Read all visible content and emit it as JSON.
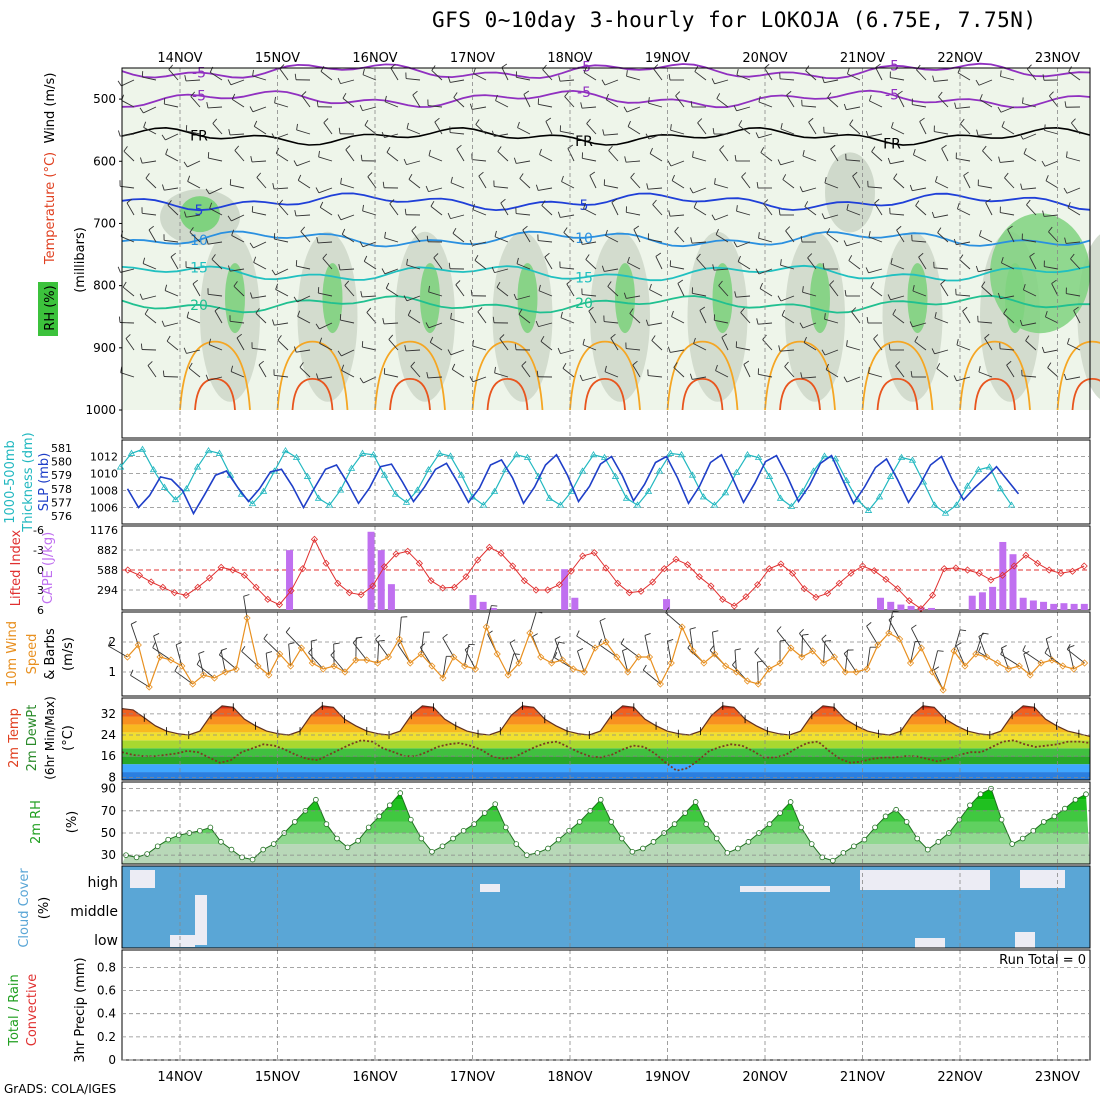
{
  "title": "GFS 0~10day 3-hourly for LOKOJA (6.75E, 7.75N)",
  "footer": "GrADS: COLA/IGES",
  "run_total": "Run Total = 0",
  "days": [
    "14NOV",
    "15NOV",
    "16NOV",
    "17NOV",
    "18NOV",
    "19NOV",
    "20NOV",
    "21NOV",
    "22NOV",
    "23NOV"
  ],
  "colors": {
    "temp_warm": "#e8551e",
    "temp_orange": "#f5a623",
    "green": "#22c422",
    "sky": "#5aa6d6",
    "slp": "#1f3fc8",
    "thick": "#22b8c0",
    "li": "#e03030",
    "cape": "#c070f0",
    "wind10": "#e89020"
  },
  "chart_data": [
    {
      "type": "heatmap",
      "name": "upper",
      "ylabel_parts": [
        "Wind (m/s)",
        "Temperature (°C)",
        "RH (%)"
      ],
      "ylabel_units": "(millibars)",
      "yticks": [
        500,
        600,
        700,
        800,
        900,
        1000
      ],
      "ylim": [
        1000,
        450
      ],
      "isotherm_labels": [
        "-5",
        "FR",
        "5",
        "10",
        "15",
        "20"
      ],
      "rh_labels": [
        "10",
        "30",
        "50",
        "70"
      ]
    },
    {
      "type": "line",
      "name": "thickness_slp",
      "ylabel": [
        "1000-500mb",
        "Thickness (dm)",
        "SLP (mb)"
      ],
      "left_ticks": [
        576,
        577,
        578,
        579,
        580,
        581
      ],
      "right_ticks": [
        1006,
        1008,
        1010,
        1012
      ],
      "thickness": [
        579.6,
        580.6,
        580.9,
        579.4,
        578.1,
        577.2,
        578.0,
        579.6,
        580.8,
        580.6,
        579.0,
        577.6,
        576.9,
        577.8,
        579.3,
        580.8,
        580.3,
        578.9,
        577.3,
        576.8,
        577.9,
        579.5,
        580.6,
        580.5,
        579.0,
        577.6,
        577.0,
        577.9,
        579.4,
        580.6,
        580.4,
        579.0,
        577.4,
        576.8,
        577.8,
        579.4,
        580.5,
        580.3,
        578.9,
        577.3,
        576.8,
        577.8,
        579.3,
        580.5,
        580.3,
        578.9,
        577.3,
        576.8,
        577.8,
        579.3,
        580.6,
        580.5,
        579.0,
        577.4,
        576.8,
        577.7,
        579.2,
        580.5,
        580.3,
        578.9,
        577.3,
        576.7,
        577.8,
        579.3,
        580.4,
        580.2,
        578.6,
        577.2,
        576.4,
        577.4,
        578.9,
        580.3,
        580.1,
        578.5,
        576.8,
        576.2,
        576.8,
        578.2,
        579.4,
        579.6,
        578.0,
        576.8
      ],
      "slp": [
        1008.2,
        1006.0,
        1007.4,
        1009.6,
        1009.3,
        1008.0,
        1005.3,
        1007.5,
        1009.8,
        1010.3,
        1008.4,
        1006.7,
        1008.2,
        1010.2,
        1010.5,
        1008.5,
        1006.0,
        1008.3,
        1010.5,
        1011.0,
        1008.9,
        1006.5,
        1008.3,
        1010.8,
        1011.1,
        1009.0,
        1006.7,
        1008.4,
        1010.5,
        1011.2,
        1009.0,
        1006.6,
        1008.3,
        1011.0,
        1011.6,
        1009.5,
        1006.5,
        1008.4,
        1011.0,
        1012.2,
        1009.8,
        1006.7,
        1008.5,
        1011.1,
        1012.0,
        1009.7,
        1006.8,
        1008.7,
        1011.3,
        1012.0,
        1009.5,
        1006.5,
        1008.5,
        1011.3,
        1012.2,
        1009.5,
        1006.6,
        1008.8,
        1011.4,
        1012.1,
        1009.6,
        1006.7,
        1008.6,
        1011.2,
        1012.1,
        1009.3,
        1006.5,
        1008.4,
        1010.7,
        1011.7,
        1009.3,
        1006.6,
        1008.6,
        1011.0,
        1012.0,
        1009.2,
        1006.9,
        1008.3,
        1009.5,
        1010.8,
        1009.2,
        1007.6
      ]
    },
    {
      "type": "bar",
      "name": "li_cape",
      "ylabel": [
        "Lifted Index",
        "CAPE (J/kg)"
      ],
      "left_ticks": [
        -6,
        -3,
        0,
        3,
        6
      ],
      "right_ticks": [
        294,
        588,
        882,
        1176
      ],
      "lifted_index": [
        0.0,
        0.8,
        1.8,
        2.6,
        3.4,
        3.8,
        2.6,
        1.2,
        -0.4,
        0.0,
        0.8,
        2.6,
        4.4,
        5.2,
        3.1,
        -0.2,
        -4.6,
        -1.0,
        2.0,
        3.4,
        3.7,
        2.4,
        -0.5,
        -2.4,
        -2.8,
        -1.0,
        1.6,
        2.7,
        2.6,
        1.0,
        -1.5,
        -3.4,
        -2.5,
        -0.6,
        1.6,
        3.0,
        3.0,
        2.2,
        0.2,
        -2.1,
        -2.6,
        -0.3,
        2.0,
        3.4,
        3.2,
        1.8,
        -0.2,
        -1.6,
        -0.8,
        1.0,
        2.4,
        4.4,
        5.4,
        4.0,
        2.2,
        -0.2,
        -0.9,
        0.5,
        2.8,
        4.1,
        3.5,
        2.0,
        0.5,
        -0.6,
        0.1,
        1.4,
        2.8,
        4.6,
        5.8,
        3.8,
        -0.2,
        -0.3,
        0.0,
        0.5,
        1.5,
        0.8,
        -0.6,
        -2.2,
        -1.0,
        0.0,
        0.5,
        0.2,
        -0.6
      ],
      "cape": [
        0,
        0,
        0,
        0,
        0,
        0,
        0,
        0,
        0,
        0,
        0,
        0,
        0,
        0,
        0,
        0,
        880,
        0,
        0,
        0,
        0,
        0,
        0,
        0,
        1150,
        880,
        380,
        0,
        0,
        0,
        0,
        0,
        0,
        0,
        220,
        120,
        30,
        0,
        0,
        0,
        0,
        0,
        0,
        600,
        180,
        0,
        0,
        0,
        0,
        0,
        0,
        0,
        0,
        160,
        0,
        0,
        0,
        0,
        0,
        0,
        0,
        0,
        0,
        0,
        0,
        0,
        0,
        0,
        0,
        0,
        0,
        0,
        0,
        0,
        180,
        120,
        80,
        60,
        40,
        30,
        0,
        0,
        0,
        210,
        260,
        340,
        1000,
        820,
        180,
        140,
        120,
        90,
        100,
        90,
        90
      ]
    },
    {
      "type": "line",
      "name": "wind10",
      "ylabel": [
        "10m Wind",
        "Speed",
        "& Barbs",
        "(m/s)"
      ],
      "yticks": [
        1,
        2
      ],
      "ylim": [
        0.2,
        3.0
      ],
      "values": [
        1.5,
        1.9,
        0.5,
        1.5,
        1.4,
        1.2,
        0.6,
        0.9,
        0.8,
        1.0,
        1.1,
        2.8,
        1.2,
        0.9,
        1.6,
        1.2,
        1.8,
        1.3,
        1.1,
        1.2,
        1.0,
        1.4,
        1.4,
        1.3,
        1.5,
        2.1,
        1.3,
        1.6,
        1.2,
        0.8,
        1.5,
        1.2,
        1.1,
        2.5,
        1.6,
        0.9,
        1.3,
        2.3,
        1.5,
        1.3,
        1.4,
        1.1,
        1.0,
        1.8,
        2.0,
        1.5,
        1.0,
        1.5,
        1.5,
        0.6,
        1.3,
        2.5,
        1.7,
        1.3,
        1.6,
        1.2,
        1.0,
        0.7,
        0.6,
        1.1,
        1.3,
        1.8,
        1.5,
        1.7,
        1.3,
        1.5,
        1.0,
        1.0,
        1.1,
        1.9,
        2.3,
        2.1,
        1.3,
        1.8,
        1.0,
        0.4,
        1.7,
        1.2,
        1.6,
        1.5,
        1.3,
        1.1,
        1.2,
        0.9,
        1.3,
        1.4,
        1.2,
        1.1,
        1.3
      ]
    },
    {
      "type": "area",
      "name": "temp2m",
      "ylabel": [
        "2m Temp",
        "2m DewPt",
        "(6hr Min/Max)",
        "(°C)"
      ],
      "yticks": [
        8,
        16,
        24,
        32
      ],
      "ylim": [
        7,
        38
      ],
      "temp": [
        34.0,
        33.5,
        30.5,
        27.5,
        25.5,
        24.5,
        24.0,
        25.5,
        31.5,
        35.0,
        34.5,
        30.0,
        27.5,
        25.5,
        24.5,
        24.0,
        25.5,
        31.5,
        35.0,
        34.5,
        30.0,
        27.5,
        25.5,
        24.5,
        24.0,
        25.5,
        31.5,
        35.0,
        34.5,
        30.0,
        27.5,
        25.5,
        24.5,
        24.0,
        25.5,
        31.5,
        35.0,
        34.5,
        30.0,
        27.5,
        25.5,
        24.5,
        24.0,
        25.5,
        31.5,
        35.0,
        34.5,
        30.0,
        27.5,
        25.5,
        24.5,
        24.0,
        25.5,
        31.5,
        35.0,
        34.5,
        30.0,
        27.5,
        25.5,
        24.5,
        24.0,
        25.5,
        31.5,
        35.0,
        34.5,
        30.0,
        27.5,
        25.5,
        24.5,
        24.0,
        25.5,
        31.5,
        35.0,
        34.5,
        30.0,
        27.5,
        25.5,
        24.5,
        24.0,
        25.5,
        31.5,
        35.0,
        34.5,
        30.0,
        27.5,
        25.5,
        24.5,
        23.5
      ],
      "dewpoint": [
        17.5,
        16.5,
        16.0,
        16.0,
        16.5,
        17.0,
        18.0,
        17.5,
        15.5,
        13.5,
        14.5,
        17.5,
        19.0,
        20.5,
        20.0,
        18.5,
        16.5,
        15.0,
        14.5,
        16.5,
        18.5,
        20.5,
        22.0,
        21.5,
        19.0,
        17.5,
        16.0,
        16.0,
        17.5,
        19.5,
        20.5,
        21.0,
        20.0,
        18.5,
        16.0,
        15.0,
        15.5,
        17.5,
        19.5,
        21.0,
        21.5,
        19.5,
        17.5,
        16.0,
        15.5,
        16.5,
        18.5,
        20.0,
        19.5,
        17.0,
        13.5,
        10.5,
        11.5,
        14.5,
        18.0,
        19.5,
        20.5,
        20.0,
        18.0,
        15.5,
        15.5,
        16.5,
        19.0,
        21.0,
        21.5,
        18.0,
        15.0,
        13.5,
        14.0,
        15.0,
        15.5,
        15.5,
        16.0,
        16.0,
        15.0,
        14.0,
        15.0,
        16.5,
        17.5,
        17.5,
        19.5,
        21.5,
        22.0,
        20.5,
        19.5,
        20.0,
        20.5,
        21.5,
        21.5,
        21.0
      ]
    },
    {
      "type": "area",
      "name": "rh2m",
      "ylabel": [
        "2m RH",
        "(%)"
      ],
      "yticks": [
        30,
        50,
        70,
        90
      ],
      "ylim": [
        22,
        96
      ],
      "values": [
        30,
        28,
        31,
        38,
        44,
        48,
        50,
        52,
        55,
        42,
        35,
        28,
        26,
        35,
        40,
        50,
        60,
        70,
        80,
        58,
        45,
        37,
        43,
        55,
        65,
        75,
        86,
        62,
        45,
        33,
        38,
        45,
        52,
        58,
        68,
        76,
        55,
        40,
        30,
        32,
        36,
        44,
        52,
        60,
        70,
        80,
        60,
        45,
        33,
        36,
        42,
        50,
        58,
        68,
        78,
        58,
        45,
        32,
        36,
        42,
        50,
        58,
        68,
        78,
        55,
        40,
        28,
        25,
        32,
        38,
        44,
        55,
        65,
        71,
        60,
        45,
        35,
        42,
        50,
        62,
        75,
        85,
        90,
        62,
        40,
        45,
        52,
        60,
        65,
        72,
        80,
        85
      ]
    },
    {
      "type": "bar",
      "name": "cloud",
      "ylabel": [
        "Cloud Cover",
        "(%)"
      ],
      "levels": [
        "high",
        "middle",
        "low"
      ]
    },
    {
      "type": "bar",
      "name": "precip",
      "ylabel": [
        "Total / Rain",
        "Convective",
        "3hr Precip (mm)"
      ],
      "yticks": [
        0,
        0.2,
        0.4,
        0.6,
        0.8
      ],
      "ylim": [
        0,
        0.95
      ],
      "values": []
    }
  ]
}
